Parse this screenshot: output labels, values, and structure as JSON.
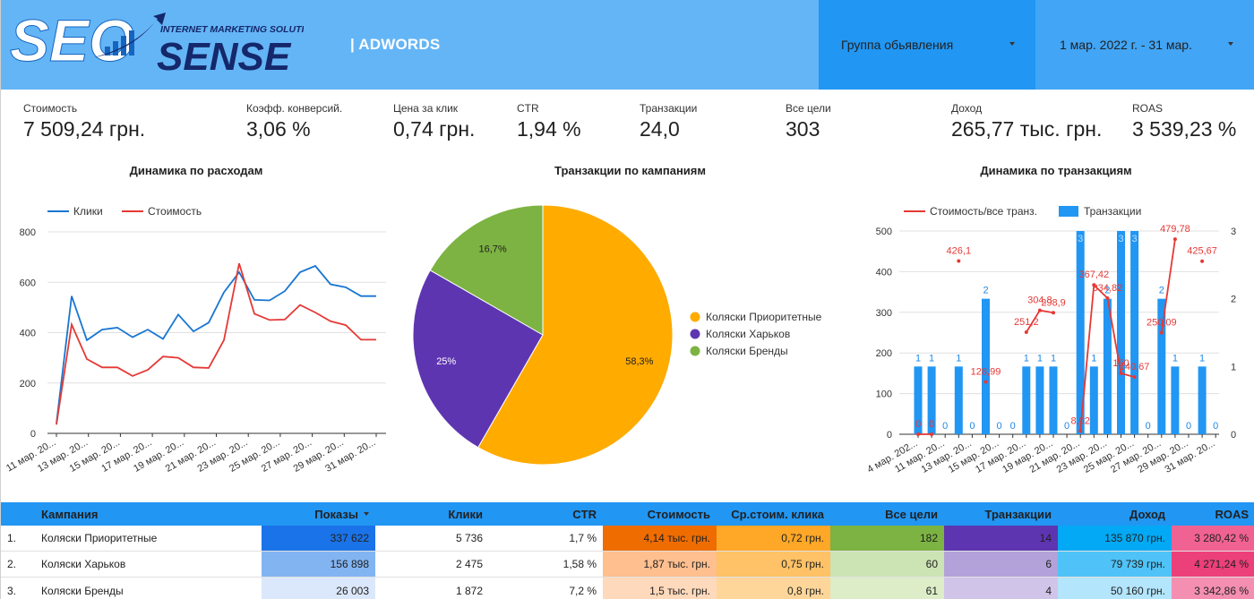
{
  "header": {
    "logo_word1": "SEO",
    "logo_word2": "SENSE",
    "logo_tagline": "INTERNET MARKETING SOLUTIONS",
    "subtitle": "| ADWORDS",
    "group_control": "Группа обьявления",
    "date_control": "1 мар. 2022 г. - 31 мар.",
    "colors": {
      "bar": "#64b5f6",
      "group_bg": "#2196f3",
      "date_bg": "#42a5f5",
      "logo_blue": "#1565c0",
      "logo_navy": "#14286b"
    }
  },
  "kpis": [
    {
      "label": "Стоимость",
      "value": "7 509,24 грн."
    },
    {
      "label": "Коэфф. конверсий.",
      "value": "3,06 %"
    },
    {
      "label": "Цена за клик",
      "value": "0,74 грн."
    },
    {
      "label": "CTR",
      "value": "1,94 %"
    },
    {
      "label": "Транзакции",
      "value": "24,0"
    },
    {
      "label": "Все цели",
      "value": "303"
    },
    {
      "label": "Доход",
      "value": "265,77 тыс. грн."
    },
    {
      "label": "ROAS",
      "value": "3 539,23 %"
    }
  ],
  "chart_data": [
    {
      "type": "line",
      "title": "Динамика по расходам",
      "legend_position": "top-left",
      "y_ticks": [
        "800",
        "600",
        "400",
        "200",
        "0"
      ],
      "ylim": [
        0,
        800
      ],
      "x_tick_labels": [
        "11 мар. 20...",
        "13 мар. 20...",
        "15 мар. 20...",
        "17 мар. 20...",
        "19 мар. 20...",
        "21 мар. 20...",
        "23 мар. 20...",
        "25 мар. 20...",
        "27 мар. 20...",
        "29 мар. 20...",
        "31 мар. 20..."
      ],
      "x_days": [
        10,
        11,
        12,
        13,
        14,
        15,
        16,
        17,
        18,
        19,
        20,
        21,
        22,
        23,
        24,
        25,
        26,
        27,
        28,
        29,
        30,
        31
      ],
      "grid": true,
      "series": [
        {
          "name": "Клики",
          "color": "#1976d2",
          "values": [
            40,
            545,
            370,
            412,
            420,
            382,
            412,
            375,
            472,
            405,
            440,
            560,
            640,
            530,
            528,
            565,
            640,
            665,
            592,
            580,
            545,
            545
          ]
        },
        {
          "name": "Стоимость",
          "color": "#e53935",
          "values": [
            35,
            432,
            295,
            262,
            262,
            228,
            252,
            305,
            300,
            262,
            260,
            370,
            675,
            475,
            450,
            452,
            510,
            480,
            445,
            430,
            372,
            372
          ]
        }
      ]
    },
    {
      "type": "pie",
      "title": "Транзакции по кампаниям",
      "legend_position": "right",
      "slices": [
        {
          "name": "Коляски Приоритетные",
          "value": 58.3,
          "label": "58,3%",
          "color": "#ffab00"
        },
        {
          "name": "Коляски Харьков",
          "value": 25,
          "label": "25%",
          "color": "#5e35b1"
        },
        {
          "name": "Коляски Бренды",
          "value": 16.7,
          "label": "16,7%",
          "color": "#7cb342"
        }
      ]
    },
    {
      "type": "bar+line",
      "title": "Динамика по транзакциям",
      "legend_position": "top",
      "y_left_ticks": [
        "500",
        "400",
        "300",
        "200",
        "100",
        "0"
      ],
      "y_left_lim": [
        0,
        500
      ],
      "y_right_ticks": [
        "3",
        "2",
        "1",
        "0"
      ],
      "y_right_lim": [
        0,
        3
      ],
      "x_tick_labels": [
        "4 мар. 202...",
        "11 мар. 20...",
        "13 мар. 20...",
        "15 мар. 20...",
        "17 мар. 20...",
        "19 мар. 20...",
        "21 мар. 20...",
        "23 мар. 20...",
        "25 мар. 20...",
        "27 мар. 20...",
        "29 мар. 20...",
        "31 мар. 20..."
      ],
      "bars": {
        "name": "Транзакции",
        "color": "#2196f3",
        "values": [
          1,
          1,
          0,
          1,
          0,
          2,
          0,
          0,
          1,
          1,
          1,
          0,
          3,
          1,
          2,
          3,
          3,
          0,
          2,
          1,
          0,
          1,
          0
        ],
        "labels": [
          "1",
          "1",
          "0",
          "1",
          "0",
          "2",
          "0",
          "0",
          "1",
          "1",
          "1",
          "0",
          "3",
          "1",
          "2",
          "3",
          "3",
          "0",
          "2",
          "1",
          "0",
          "1",
          "0"
        ]
      },
      "line": {
        "name": "Стоимость/все транз.",
        "color": "#e53935",
        "values": [
          0,
          0,
          null,
          426.1,
          null,
          128.99,
          null,
          null,
          251.2,
          304.8,
          298.9,
          null,
          8.02,
          367.42,
          334.82,
          150,
          140.67,
          null,
          250.09,
          479.78,
          null,
          425.67,
          null
        ],
        "labels": [
          "0",
          "0",
          "",
          "426,1",
          "",
          "128,99",
          "",
          "",
          "251,2",
          "304,8",
          "298,9",
          "",
          "8,02",
          "367,42",
          "334,82",
          "150",
          "140,67",
          "",
          "250,09",
          "479,78",
          "",
          "425,67",
          ""
        ]
      }
    }
  ],
  "table": {
    "columns": [
      "Кампания",
      "Показы",
      "Клики",
      "CTR",
      "Стоимость",
      "Ср.стоим. клика",
      "Все цели",
      "Транзакции",
      "Доход",
      "ROAS"
    ],
    "rows": [
      {
        "n": "1.",
        "cells": [
          "Коляски Приоритетные",
          "337 622",
          "5 736",
          "1,7 %",
          "4,14 тыс. грн.",
          "0,72 грн.",
          "182",
          "14",
          "135 870 грн.",
          "3 280,42 %"
        ]
      },
      {
        "n": "2.",
        "cells": [
          "Коляски Харьков",
          "156 898",
          "2 475",
          "1,58 %",
          "1,87 тыс. грн.",
          "0,75 грн.",
          "60",
          "6",
          "79 739 грн.",
          "4 271,24 %"
        ]
      },
      {
        "n": "3.",
        "cells": [
          "Коляски Бренды",
          "26 003",
          "1 872",
          "7,2 %",
          "1,5 тыс. грн.",
          "0,8 грн.",
          "61",
          "4",
          "50 160 грн.",
          "3 342,86 %"
        ]
      }
    ],
    "heat_colors": [
      [
        "#1a73e8",
        "",
        "",
        "#ef6c00",
        "#ffa726",
        "#7cb342",
        "#5e35b1",
        "#03a9f4",
        "#f06292"
      ],
      [
        "#82b4f2",
        "",
        "",
        "#ffbf8f",
        "#ffc266",
        "#cce3b3",
        "#b3a2d9",
        "#4fc3f7",
        "#ec407a"
      ],
      [
        "#dbe8fb",
        "",
        "",
        "#ffd9bb",
        "#ffd699",
        "#dcedc8",
        "#d1c4e9",
        "#b3e5fc",
        "#f48fb1"
      ]
    ]
  }
}
